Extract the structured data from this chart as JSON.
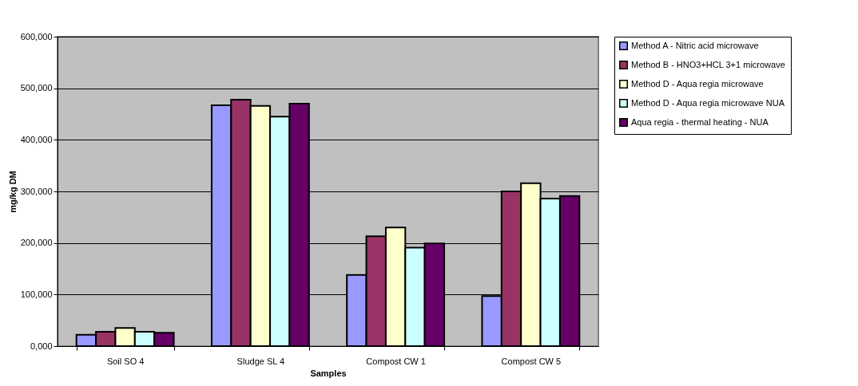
{
  "chart_data": {
    "type": "bar",
    "xlabel": "Samples",
    "ylabel": "mg/kg DM",
    "categories": [
      "Soil SO 4",
      "Sludge SL 4",
      "Compost CW 1",
      "Compost CW 5"
    ],
    "series": [
      {
        "name": "Method A - Nitric acid microwave",
        "color": "#9999ff",
        "values": [
          22000,
          467000,
          138000,
          97000
        ]
      },
      {
        "name": "Method B - HNO3+HCL 3+1 microwave",
        "color": "#993366",
        "values": [
          28000,
          478000,
          213000,
          300000
        ]
      },
      {
        "name": "Method D - Aqua regia microwave",
        "color": "#ffffcc",
        "values": [
          35000,
          466000,
          230000,
          316000
        ]
      },
      {
        "name": "Method D - Aqua regia microwave NUA",
        "color": "#ccffff",
        "values": [
          28000,
          445000,
          191000,
          286000
        ]
      },
      {
        "name": "Aqua regia - thermal heating - NUA",
        "color": "#660066",
        "values": [
          26000,
          470000,
          199000,
          291000
        ]
      }
    ],
    "ylim": [
      0,
      600000
    ],
    "yticks": [
      {
        "value": 0,
        "label": "0,000"
      },
      {
        "value": 100000,
        "label": "100,000"
      },
      {
        "value": 200000,
        "label": "200,000"
      },
      {
        "value": 300000,
        "label": "300,000"
      },
      {
        "value": 400000,
        "label": "400,000"
      },
      {
        "value": 500000,
        "label": "500,000"
      },
      {
        "value": 600000,
        "label": "600,000"
      }
    ],
    "grid": "y",
    "legend": "right"
  }
}
